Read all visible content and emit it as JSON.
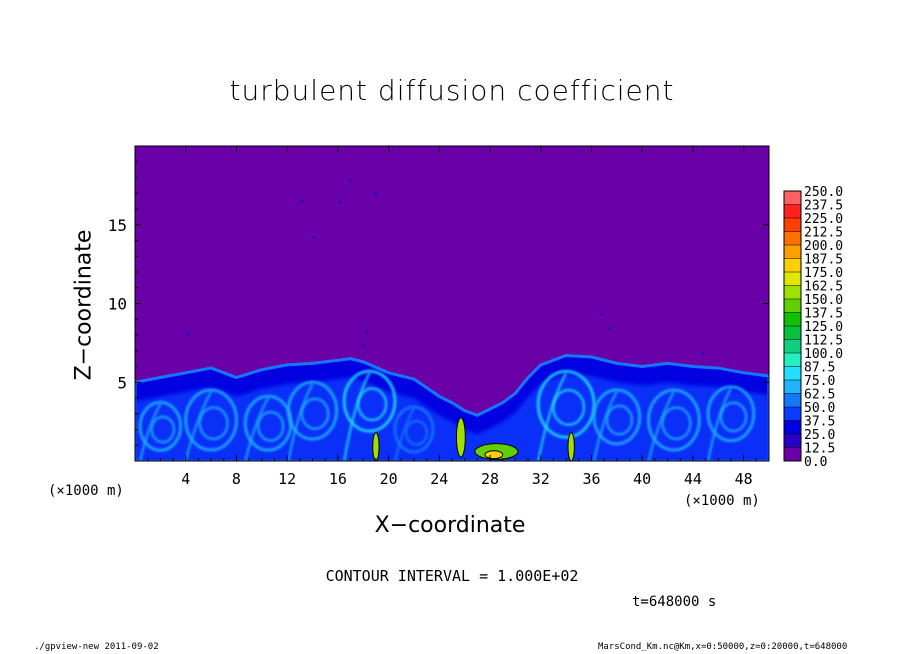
{
  "title": "turbulent diffusion coefficient",
  "xlabel": "X−coordinate",
  "ylabel": "Z−coordinate",
  "x_unit_left": "(×1000 m)",
  "x_unit_right": "(×1000 m)",
  "contour_interval": "CONTOUR INTERVAL = 1.000E+02",
  "time_label": "t=648000 s",
  "footer_left": "./gpview-new  2011-09-02",
  "footer_right": "MarsCond_Km.nc@Km,x=0:50000,z=0:20000,t=648000",
  "chart_data": {
    "type": "heatmap",
    "title": "turbulent diffusion coefficient",
    "xlabel": "X−coordinate",
    "ylabel": "Z−coordinate",
    "xlim": [
      0,
      50
    ],
    "ylim": [
      0,
      20
    ],
    "x_ticks": [
      4,
      8,
      12,
      16,
      20,
      24,
      28,
      32,
      36,
      40,
      44,
      48
    ],
    "y_ticks": [
      5,
      10,
      15
    ],
    "colorbar_levels": [
      "0.0",
      "12.5",
      "25.0",
      "37.5",
      "50.0",
      "62.5",
      "75.0",
      "87.5",
      "100.0",
      "112.5",
      "125.0",
      "137.5",
      "150.0",
      "162.5",
      "175.0",
      "187.5",
      "200.0",
      "212.5",
      "225.0",
      "237.5",
      "250.0"
    ],
    "colorbar_colors": [
      "#6a00a8",
      "#2a00c8",
      "#0000e0",
      "#0a3cff",
      "#1478ff",
      "#20b4ff",
      "#22e0ff",
      "#22f0c0",
      "#10d080",
      "#08c040",
      "#10c000",
      "#60d000",
      "#a0e000",
      "#e0e800",
      "#ffd000",
      "#ffa000",
      "#ff7000",
      "#ff4000",
      "#ff2020",
      "#ff6060"
    ],
    "background_color": "#6a00a8",
    "boundary_layer_top": [
      [
        0,
        5.0
      ],
      [
        2,
        5.3
      ],
      [
        4,
        5.6
      ],
      [
        6,
        5.9
      ],
      [
        8,
        5.3
      ],
      [
        10,
        5.8
      ],
      [
        12,
        6.1
      ],
      [
        14,
        6.2
      ],
      [
        16,
        6.4
      ],
      [
        17,
        6.5
      ],
      [
        18,
        6.3
      ],
      [
        20,
        5.6
      ],
      [
        22,
        5.2
      ],
      [
        24,
        4.1
      ],
      [
        25,
        3.7
      ],
      [
        26,
        3.2
      ],
      [
        27,
        2.9
      ],
      [
        28,
        3.3
      ],
      [
        29,
        3.7
      ],
      [
        30,
        4.3
      ],
      [
        31,
        5.3
      ],
      [
        32,
        6.1
      ],
      [
        34,
        6.7
      ],
      [
        36,
        6.6
      ],
      [
        38,
        6.2
      ],
      [
        40,
        6.0
      ],
      [
        42,
        6.2
      ],
      [
        44,
        6.0
      ],
      [
        46,
        5.9
      ],
      [
        48,
        5.6
      ],
      [
        50,
        5.4
      ]
    ],
    "eddies": [
      {
        "x": 2.0,
        "z": 2.2,
        "r": 1.6,
        "value": 62.5
      },
      {
        "x": 6.0,
        "z": 2.6,
        "r": 2.0,
        "value": 62.5
      },
      {
        "x": 10.5,
        "z": 2.4,
        "r": 1.8,
        "value": 62.5
      },
      {
        "x": 14.0,
        "z": 3.2,
        "r": 1.9,
        "value": 62.5
      },
      {
        "x": 18.5,
        "z": 3.8,
        "r": 2.0,
        "value": 75.0
      },
      {
        "x": 22.0,
        "z": 2.0,
        "r": 1.5,
        "value": 50.0
      },
      {
        "x": 34.0,
        "z": 3.6,
        "r": 2.2,
        "value": 75.0
      },
      {
        "x": 38.0,
        "z": 2.8,
        "r": 1.8,
        "value": 62.5
      },
      {
        "x": 42.5,
        "z": 2.6,
        "r": 2.0,
        "value": 62.5
      },
      {
        "x": 47.0,
        "z": 3.0,
        "r": 1.8,
        "value": 62.5
      }
    ],
    "hot_spots": [
      {
        "x": 19.0,
        "z": 0.9,
        "w": 0.5,
        "h": 1.8,
        "value": 150.0
      },
      {
        "x": 25.7,
        "z": 1.5,
        "w": 0.7,
        "h": 2.5,
        "value": 150.0
      },
      {
        "x": 28.5,
        "z": 0.6,
        "w": 3.4,
        "h": 1.0,
        "value": 137.5
      },
      {
        "x": 28.3,
        "z": 0.4,
        "w": 1.4,
        "h": 0.5,
        "value": 175.0
      },
      {
        "x": 34.4,
        "z": 0.9,
        "w": 0.5,
        "h": 1.8,
        "value": 150.0
      }
    ],
    "specks": [
      [
        4.2,
        8.0
      ],
      [
        13.2,
        16.5
      ],
      [
        14.1,
        14.2
      ],
      [
        16.2,
        16.4
      ],
      [
        17.0,
        17.8
      ],
      [
        19.0,
        17.0
      ],
      [
        18.3,
        8.2
      ],
      [
        18.0,
        7.3
      ],
      [
        36.8,
        9.3
      ],
      [
        37.4,
        8.4
      ],
      [
        44.8,
        6.8
      ]
    ]
  }
}
